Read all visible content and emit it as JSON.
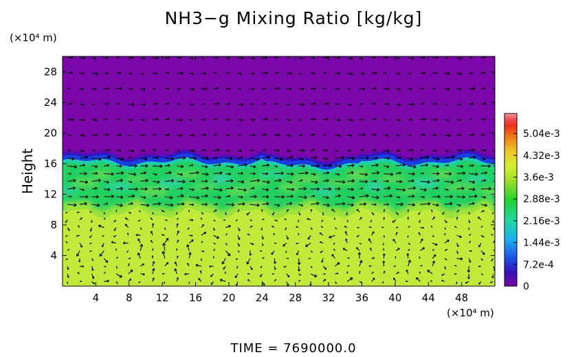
{
  "chart_data": {
    "type": "heatmap",
    "title": "NH3−g Mixing Ratio [kg/kg]",
    "ylabel": "Height",
    "xlabel": "",
    "x_units": "(×10⁴ m)",
    "y_units": "(×10⁴ m)",
    "xlim": [
      0,
      52
    ],
    "ylim": [
      0,
      30
    ],
    "x_ticks": [
      4,
      8,
      12,
      16,
      20,
      24,
      28,
      32,
      36,
      40,
      44,
      48
    ],
    "y_ticks": [
      4,
      8,
      12,
      16,
      20,
      24,
      28
    ],
    "colorbar": {
      "range": [
        0,
        0.0057
      ],
      "ticks": [
        {
          "value": 0,
          "label": "0"
        },
        {
          "value": 0.00072,
          "label": "7.2e-4"
        },
        {
          "value": 0.00144,
          "label": "1.44e-3"
        },
        {
          "value": 0.00216,
          "label": "2.16e-3"
        },
        {
          "value": 0.00288,
          "label": "2.88e-3"
        },
        {
          "value": 0.0036,
          "label": "3.6e-3"
        },
        {
          "value": 0.00432,
          "label": "4.32e-3"
        },
        {
          "value": 0.00504,
          "label": "5.04e-3"
        }
      ],
      "colors": [
        "#7a07a8",
        "#3512b8",
        "#1f4ee6",
        "#19b0f0",
        "#20d8a0",
        "#22d230",
        "#a8e228",
        "#d8f030",
        "#f0c828",
        "#f08018",
        "#f03018",
        "#f05060",
        "#f4a0a0"
      ]
    },
    "field_description": {
      "lower_layer_value": 0.0037,
      "mid_layer_value": 0.0027,
      "upper_layer_value": 0
    },
    "regions": [
      {
        "name": "lower",
        "y_range": [
          0,
          10.5
        ],
        "value": 0.0037
      },
      {
        "name": "mixing",
        "y_range": [
          10.5,
          16.5
        ],
        "value": 0.0027
      },
      {
        "name": "front",
        "y_range": [
          15.5,
          17.5
        ],
        "value": 0.0005
      },
      {
        "name": "upper",
        "y_range": [
          17.5,
          30
        ],
        "value": 0
      }
    ],
    "vortex_centers": [
      {
        "x": 7,
        "y": 4
      },
      {
        "x": 17.5,
        "y": 4
      },
      {
        "x": 32,
        "y": 3.5
      },
      {
        "x": 46,
        "y": 2.5
      }
    ]
  },
  "time_label": "TIME = 7690000.0",
  "colors": {
    "upper": "#7a07a8",
    "front": "#2a16c0",
    "mixing": "#22d060",
    "lower": "#c2ea3a"
  }
}
